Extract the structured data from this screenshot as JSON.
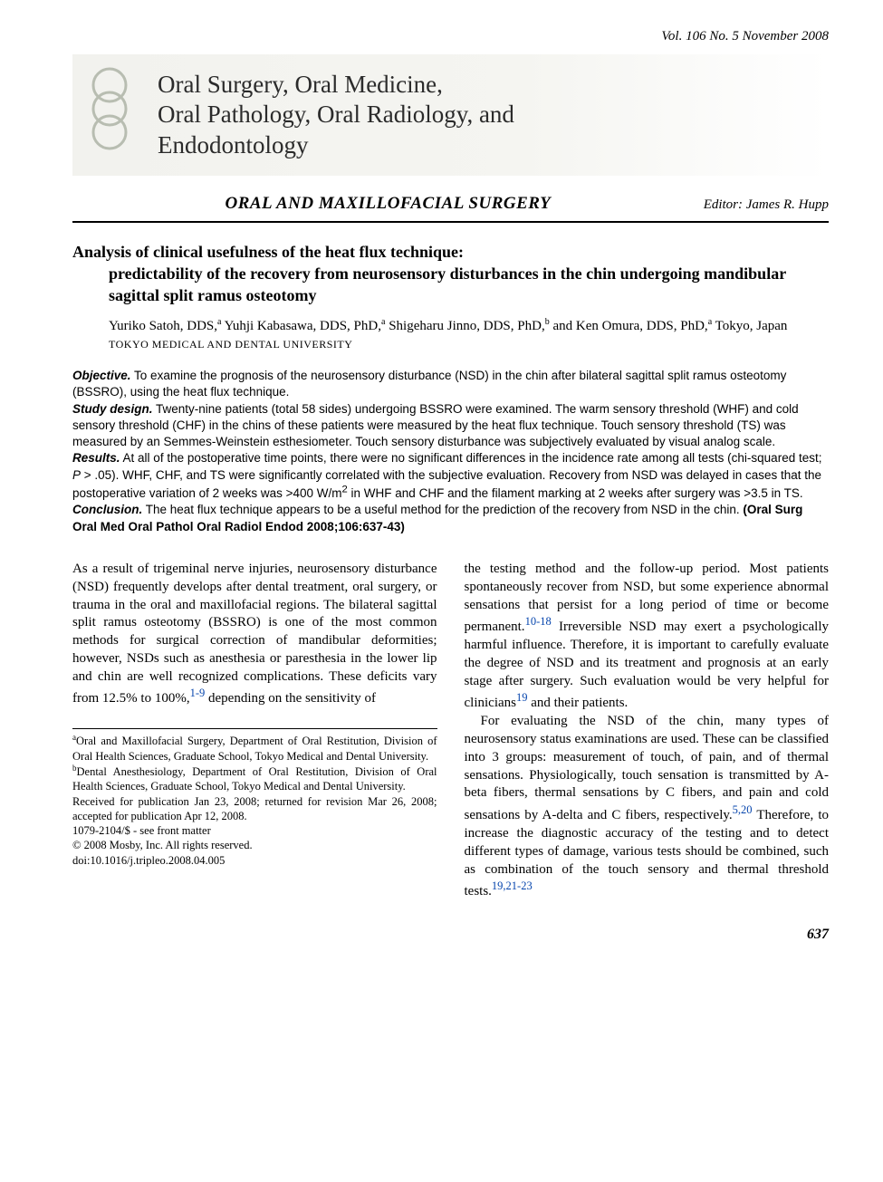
{
  "issue": "Vol. 106   No. 5   November 2008",
  "journal": {
    "title_html": "Oral Surgery, Oral Medicine,<br>Oral Pathology, Oral Radiology, and<br>Endodontology",
    "logo_ring_color": "#b8bdb1"
  },
  "section": {
    "title": "ORAL AND MAXILLOFACIAL SURGERY",
    "editor": "Editor: James R. Hupp"
  },
  "article": {
    "title_line1": "Analysis of clinical usefulness of the heat flux technique:",
    "title_rest": "predictability of the recovery from neurosensory disturbances in the chin undergoing mandibular sagittal split ramus osteotomy",
    "authors_html": "Yuriko Satoh, DDS,<sup>a</sup> Yuhji Kabasawa, DDS, PhD,<sup>a</sup> Shigeharu Jinno, DDS, PhD,<sup>b</sup> and Ken Omura, DDS, PhD,<sup>a</sup> Tokyo, Japan",
    "affiliation": "TOKYO MEDICAL AND DENTAL UNIVERSITY"
  },
  "abstract": {
    "objective": "To examine the prognosis of the neurosensory disturbance (NSD) in the chin after bilateral sagittal split ramus osteotomy (BSSRO), using the heat flux technique.",
    "study_design": "Twenty-nine patients (total 58 sides) undergoing BSSRO were examined. The warm sensory threshold (WHF) and cold sensory threshold (CHF) in the chins of these patients were measured by the heat flux technique. Touch sensory threshold (TS) was measured by an Semmes-Weinstein esthesiometer. Touch sensory disturbance was subjectively evaluated by visual analog scale.",
    "results_html": "At all of the postoperative time points, there were no significant differences in the incidence rate among all tests (chi-squared test; <i>P</i> > .05). WHF, CHF, and TS were significantly correlated with the subjective evaluation. Recovery from NSD was delayed in cases that the postoperative variation of 2 weeks was >400 W/m<sup>2</sup> in WHF and CHF and the filament marking at 2 weeks after surgery was >3.5 in TS.",
    "conclusion": "The heat flux technique appears to be a useful method for the prediction of the recovery from NSD in the chin.",
    "citation": "(Oral Surg Oral Med Oral Pathol Oral Radiol Endod 2008;106:637-43)"
  },
  "body": {
    "col1_p1_html": "As a result of trigeminal nerve injuries, neurosensory disturbance (NSD) frequently develops after dental treatment, oral surgery, or trauma in the oral and maxillofacial regions. The bilateral sagittal split ramus osteotomy (BSSRO) is one of the most common methods for surgical correction of mandibular deformities; however, NSDs such as anesthesia or paresthesia in the lower lip and chin are well recognized complications. These deficits vary from 12.5% to 100%,<sup class=\"ref-link\">1-9</sup> depending on the sensitivity of",
    "col2_p1_html": "the testing method and the follow-up period. Most patients spontaneously recover from NSD, but some experience abnormal sensations that persist for a long period of time or become permanent.<sup class=\"ref-link\">10-18</sup> Irreversible NSD may exert a psychologically harmful influence. Therefore, it is important to carefully evaluate the degree of NSD and its treatment and prognosis at an early stage after surgery. Such evaluation would be very helpful for clinicians<sup class=\"ref-link\">19</sup> and their patients.",
    "col2_p2_html": "For evaluating the NSD of the chin, many types of neurosensory status examinations are used. These can be classified into 3 groups: measurement of touch, of pain, and of thermal sensations. Physiologically, touch sensation is transmitted by A-beta fibers, thermal sensations by C fibers, and pain and cold sensations by A-delta and C fibers, respectively.<sup class=\"ref-link\">5,20</sup> Therefore, to increase the diagnostic accuracy of the testing and to detect different types of damage, various tests should be combined, such as combination of the touch sensory and thermal threshold tests.<sup class=\"ref-link\">19,21-23</sup>"
  },
  "footnotes": {
    "a": "Oral and Maxillofacial Surgery, Department of Oral Restitution, Division of Oral Health Sciences, Graduate School, Tokyo Medical and Dental University.",
    "b": "Dental Anesthesiology, Department of Oral Restitution, Division of Oral Health Sciences, Graduate School, Tokyo Medical and Dental University.",
    "received": "Received for publication Jan 23, 2008; returned for revision Mar 26, 2008; accepted for publication Apr 12, 2008.",
    "issn": "1079-2104/$ - see front matter",
    "copyright": "© 2008 Mosby, Inc. All rights reserved.",
    "doi": "doi:10.1016/j.tripleo.2008.04.005"
  },
  "page_number": "637",
  "styles": {
    "body_font": "Times New Roman",
    "abstract_font": "Arial",
    "link_color": "#0645ad",
    "rule_color": "#000000",
    "masthead_bg_from": "#f2f2ee",
    "masthead_bg_to": "#ffffff"
  }
}
